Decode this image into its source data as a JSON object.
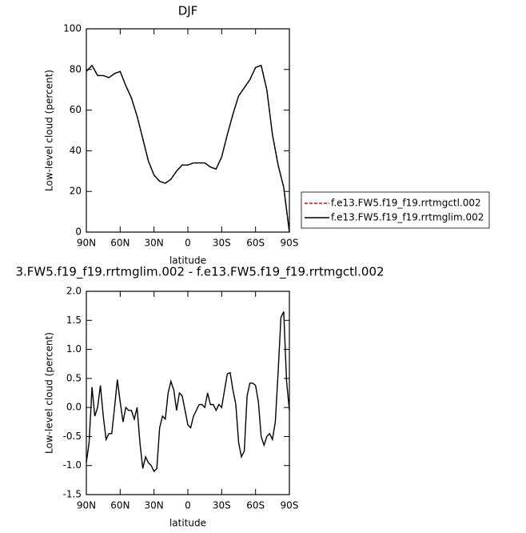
{
  "chart_data": [
    {
      "type": "line",
      "title": "DJF",
      "xlabel": "latitude",
      "ylabel": "Low-level cloud (percent)",
      "x": [
        90,
        85,
        80,
        75,
        70,
        65,
        60,
        55,
        50,
        45,
        40,
        35,
        30,
        25,
        20,
        15,
        10,
        5,
        0,
        -5,
        -10,
        -15,
        -20,
        -25,
        -30,
        -35,
        -40,
        -45,
        -50,
        -55,
        -60,
        -65,
        -70,
        -75,
        -80,
        -85,
        -90
      ],
      "series": [
        {
          "name": "f.e13.FW5.f19_f19.rrtmgctl.002",
          "color": "#ff0000",
          "line_style": "dashed",
          "values": [
            79,
            82,
            77,
            77,
            76,
            78,
            79,
            72,
            66,
            57,
            46,
            35,
            28,
            25,
            24,
            26,
            30,
            33,
            33,
            34,
            34,
            34,
            32,
            31,
            37,
            48,
            58,
            67,
            71,
            75,
            81,
            82,
            70,
            48,
            33,
            22,
            0
          ]
        },
        {
          "name": "f.e13.FW5.f19_f19.rrtmglim.002",
          "color": "#000000",
          "line_style": "solid",
          "values": [
            79,
            82,
            77,
            77,
            76,
            78,
            79,
            72,
            66,
            57,
            46,
            35,
            28,
            25,
            24,
            26,
            30,
            33,
            33,
            34,
            34,
            34,
            32,
            31,
            37,
            48,
            58,
            67,
            71,
            75,
            81,
            82,
            70,
            48,
            33,
            22,
            0
          ]
        }
      ],
      "xlim": [
        90,
        -90
      ],
      "xticks": [
        {
          "value": 90,
          "label": "90N"
        },
        {
          "value": 60,
          "label": "60N"
        },
        {
          "value": 30,
          "label": "30N"
        },
        0,
        {
          "value": -30,
          "label": "30S"
        },
        {
          "value": -60,
          "label": "60S"
        },
        {
          "value": -90,
          "label": "90S"
        }
      ],
      "ylim": [
        0,
        100
      ],
      "yticks": [
        0,
        20,
        40,
        60,
        80,
        100
      ],
      "legend": "right"
    },
    {
      "type": "line",
      "title": "3.FW5.f19_f19.rrtmglim.002 - f.e13.FW5.f19_f19.rrtmgctl.002",
      "xlabel": "latitude",
      "ylabel": "Low-level cloud (percent)",
      "x": [
        90,
        87.5,
        85,
        82.5,
        80,
        77.5,
        75,
        72.5,
        70,
        67.5,
        65,
        62.5,
        60,
        57.5,
        55,
        52.5,
        50,
        47.5,
        45,
        42.5,
        40,
        37.5,
        35,
        32.5,
        30,
        27.5,
        25,
        22.5,
        20,
        17.5,
        15,
        12.5,
        10,
        7.5,
        5,
        2.5,
        0,
        -2.5,
        -5,
        -7.5,
        -10,
        -12.5,
        -15,
        -17.5,
        -20,
        -22.5,
        -25,
        -27.5,
        -30,
        -32.5,
        -35,
        -37.5,
        -40,
        -42.5,
        -45,
        -47.5,
        -50,
        -52.5,
        -55,
        -57.5,
        -60,
        -62.5,
        -65,
        -67.5,
        -70,
        -72.5,
        -75,
        -77.5,
        -80,
        -82.5,
        -85,
        -87.5,
        -90
      ],
      "series": [
        {
          "color": "#000000",
          "line_style": "solid",
          "values": [
            -0.95,
            -0.6,
            0.35,
            -0.15,
            0.0,
            0.38,
            -0.15,
            -0.55,
            -0.45,
            -0.45,
            0.0,
            0.48,
            0.1,
            -0.25,
            0.0,
            -0.05,
            -0.05,
            -0.2,
            0.0,
            -0.6,
            -1.05,
            -0.85,
            -0.95,
            -1.0,
            -1.1,
            -1.05,
            -0.35,
            -0.15,
            -0.2,
            0.25,
            0.45,
            0.3,
            -0.05,
            0.25,
            0.2,
            -0.05,
            -0.3,
            -0.35,
            -0.15,
            -0.05,
            0.05,
            0.05,
            0.0,
            0.25,
            0.05,
            0.05,
            -0.05,
            0.05,
            0.0,
            0.3,
            0.58,
            0.6,
            0.3,
            0.05,
            -0.6,
            -0.85,
            -0.75,
            0.2,
            0.42,
            0.42,
            0.38,
            0.1,
            -0.5,
            -0.65,
            -0.5,
            -0.45,
            -0.55,
            -0.25,
            0.6,
            1.55,
            1.65,
            0.45,
            -0.05
          ]
        }
      ],
      "xlim": [
        90,
        -90
      ],
      "xticks": [
        {
          "value": 90,
          "label": "90N"
        },
        {
          "value": 60,
          "label": "60N"
        },
        {
          "value": 30,
          "label": "30N"
        },
        0,
        {
          "value": -30,
          "label": "30S"
        },
        {
          "value": -60,
          "label": "60S"
        },
        {
          "value": -90,
          "label": "90S"
        }
      ],
      "ylim": [
        -1.5,
        2.0
      ],
      "yticks": [
        {
          "value": -1.5,
          "label": "-1.5"
        },
        {
          "value": -1.0,
          "label": "-1.0"
        },
        {
          "value": -0.5,
          "label": "-0.5"
        },
        {
          "value": 0,
          "label": "0.0"
        },
        {
          "value": 0.5,
          "label": "0.5"
        },
        {
          "value": 1.0,
          "label": "1.0"
        },
        {
          "value": 1.5,
          "label": "1.5"
        },
        {
          "value": 2.0,
          "label": "2.0"
        }
      ]
    }
  ]
}
